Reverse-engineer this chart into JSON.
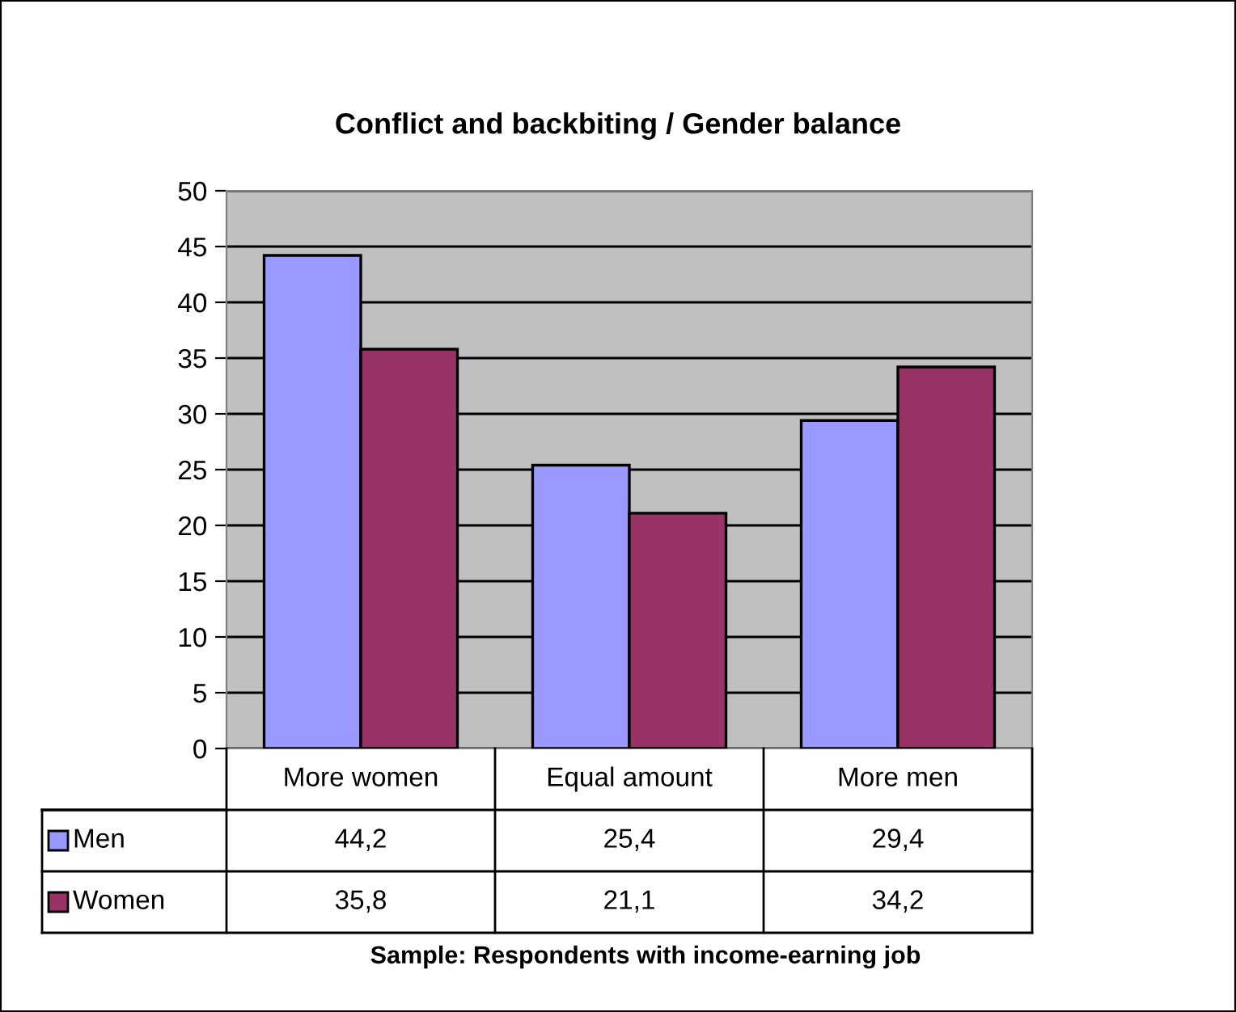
{
  "chart_data": {
    "type": "bar",
    "title": "Conflict and backbiting / Gender balance",
    "categories": [
      "More women",
      "Equal amount",
      "More men"
    ],
    "series": [
      {
        "name": "Men",
        "color": "#9999ff",
        "values": [
          44.2,
          25.4,
          29.4
        ],
        "value_labels": [
          "44,2",
          "25,4",
          "29,4"
        ]
      },
      {
        "name": "Women",
        "color": "#993366",
        "values": [
          35.8,
          21.1,
          34.2
        ],
        "value_labels": [
          "35,8",
          "21,1",
          "34,2"
        ]
      }
    ],
    "ylim": [
      0,
      50
    ],
    "yticks": [
      0,
      5,
      10,
      15,
      20,
      25,
      30,
      35,
      40,
      45,
      50
    ],
    "grid": "y",
    "legend": "bottom left",
    "annotations": [
      "Sample: Respondents with income-earning job"
    ]
  }
}
